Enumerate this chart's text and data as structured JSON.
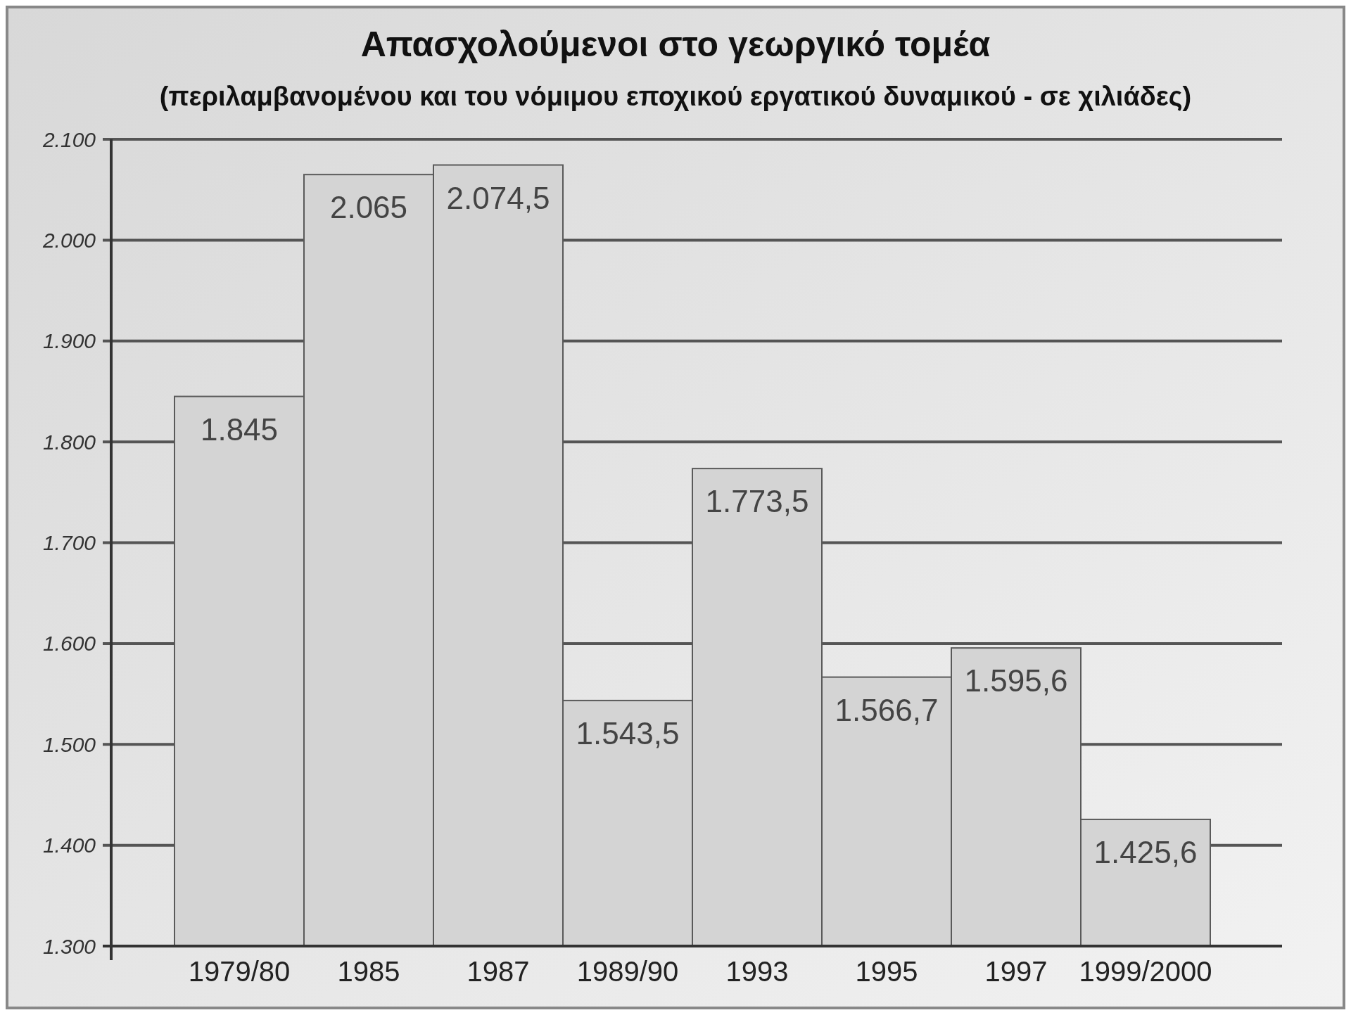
{
  "chart_data": {
    "type": "bar",
    "title": "Απασχολούμενοι στο γεωργικό τομέα",
    "subtitle": "(περιλαμβανομένου και του νόμιμου εποχικού εργατικού δυναμικού - σε χιλιάδες)",
    "categories": [
      "1979/80",
      "1985",
      "1987",
      "1989/90",
      "1993",
      "1995",
      "1997",
      "1999/2000"
    ],
    "values": [
      1845,
      2065,
      2074.5,
      1543.5,
      1773.5,
      1566.7,
      1595.6,
      1425.6
    ],
    "value_labels": [
      "1.845",
      "2.065",
      "2.074,5",
      "1.543,5",
      "1.773,5",
      "1.566,7",
      "1.595,6",
      "1.425,6"
    ],
    "color": "#d4d4d4",
    "ylim": [
      1300,
      2100
    ],
    "yticks": [
      {
        "value": 1300,
        "label": "1.300"
      },
      {
        "value": 1400,
        "label": "1.400"
      },
      {
        "value": 1500,
        "label": "1.500"
      },
      {
        "value": 1600,
        "label": "1.600"
      },
      {
        "value": 1700,
        "label": "1.700"
      },
      {
        "value": 1800,
        "label": "1.800"
      },
      {
        "value": 1900,
        "label": "1.900"
      },
      {
        "value": 2000,
        "label": "2.000"
      },
      {
        "value": 2100,
        "label": "2.100"
      }
    ],
    "grid": "y"
  }
}
